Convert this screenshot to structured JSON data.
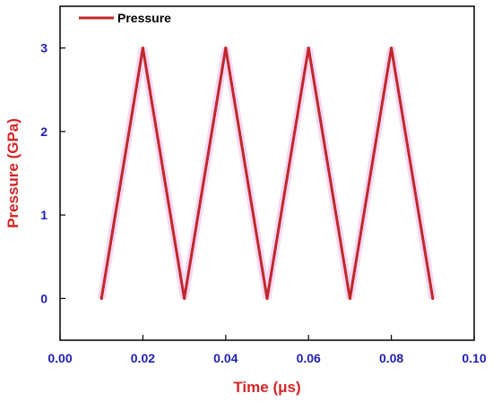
{
  "chart_data": {
    "type": "line",
    "xlabel": "Time (μs)",
    "ylabel": "Pressure (GPa)",
    "xlim": [
      0.0,
      0.1
    ],
    "ylim": [
      -0.5,
      3.5
    ],
    "x_ticks": [
      0.0,
      0.02,
      0.04,
      0.06,
      0.08,
      0.1
    ],
    "x_tick_labels": [
      "0.00",
      "0.02",
      "0.04",
      "0.06",
      "0.08",
      "0.10"
    ],
    "y_ticks": [
      0,
      1,
      2,
      3
    ],
    "y_tick_labels": [
      "0",
      "1",
      "2",
      "3"
    ],
    "legend_position": "top-left",
    "grid": false,
    "series": [
      {
        "name": "Pressure",
        "x": [
          0.01,
          0.02,
          0.03,
          0.04,
          0.05,
          0.06,
          0.07,
          0.08,
          0.09
        ],
        "y": [
          0,
          3,
          0,
          3,
          0,
          3,
          0,
          3,
          0
        ]
      }
    ]
  },
  "colors": {
    "series": "#c0282b",
    "tick_labels": "#1f1fb4",
    "axis_titles": "#d62626",
    "axes": "#000000"
  }
}
